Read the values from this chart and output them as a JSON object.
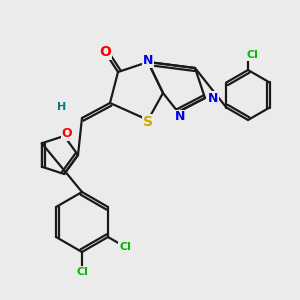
{
  "bg_color": "#ebebeb",
  "bond_color": "#1a1a1a",
  "atom_colors": {
    "O": "#ff0000",
    "N": "#0000ee",
    "S": "#ccaa00",
    "Cl": "#00bb00",
    "H": "#008080",
    "C": "#1a1a1a"
  },
  "figsize": [
    3.0,
    3.0
  ],
  "dpi": 100
}
